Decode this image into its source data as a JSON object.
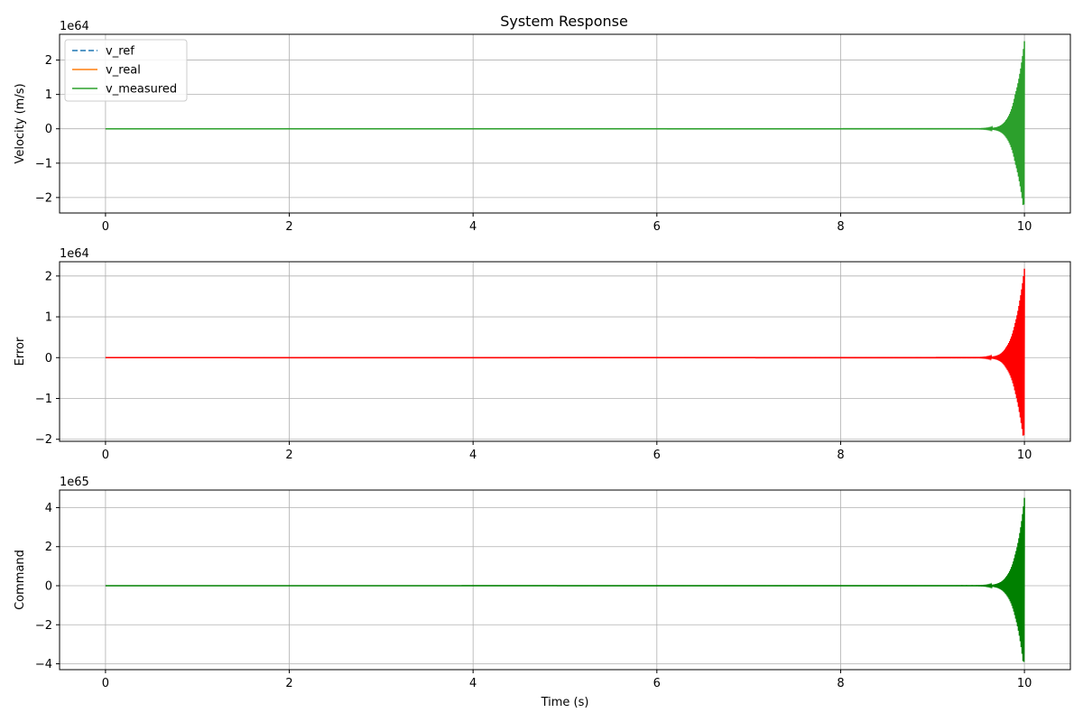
{
  "figure": {
    "title": "System Response"
  },
  "chart_data": [
    {
      "type": "line",
      "title": "System Response",
      "xlabel": "",
      "ylabel": "Velocity (m/s)",
      "y_multiplier": "1e64",
      "xlim": [
        -0.5,
        10.5
      ],
      "ylim": [
        -2.45,
        2.75
      ],
      "xticks": [
        "0",
        "2",
        "4",
        "6",
        "8",
        "10"
      ],
      "xtick_values": [
        0,
        2,
        4,
        6,
        8,
        10
      ],
      "yticks": [
        "−2",
        "−1",
        "0",
        "1",
        "2"
      ],
      "ytick_values": [
        -2,
        -1,
        0,
        1,
        2
      ],
      "grid": true,
      "legend": {
        "placement": "top-left"
      },
      "series": [
        {
          "name": "v_ref",
          "color": "#1f77b4",
          "style": "dashed",
          "behavior": "flat",
          "value": 0
        },
        {
          "name": "v_real",
          "color": "#ff7f0e",
          "style": "solid",
          "behavior": "flat",
          "value": 0
        },
        {
          "name": "v_measured",
          "color": "#2ca02c",
          "style": "solid",
          "behavior": "divergent",
          "envelope": [
            [
              0,
              0
            ],
            [
              9.5,
              0.003
            ],
            [
              9.7,
              0.05
            ],
            [
              9.8,
              0.25
            ],
            [
              9.9,
              1.0
            ],
            [
              9.95,
              1.6
            ],
            [
              10.0,
              2.55
            ]
          ],
          "min_at_end": -2.2
        }
      ]
    },
    {
      "type": "line",
      "xlabel": "",
      "ylabel": "Error",
      "y_multiplier": "1e64",
      "xlim": [
        -0.5,
        10.5
      ],
      "ylim": [
        -2.05,
        2.35
      ],
      "xticks": [
        "0",
        "2",
        "4",
        "6",
        "8",
        "10"
      ],
      "xtick_values": [
        0,
        2,
        4,
        6,
        8,
        10
      ],
      "yticks": [
        "−2",
        "−1",
        "0",
        "1",
        "2"
      ],
      "ytick_values": [
        -2,
        -1,
        0,
        1,
        2
      ],
      "grid": true,
      "series": [
        {
          "color": "#ff0000",
          "style": "solid",
          "behavior": "divergent",
          "envelope": [
            [
              0,
              0
            ],
            [
              9.5,
              0.003
            ],
            [
              9.7,
              0.05
            ],
            [
              9.8,
              0.25
            ],
            [
              9.9,
              0.85
            ],
            [
              9.95,
              1.4
            ],
            [
              10.0,
              2.18
            ]
          ],
          "min_at_end": -1.9
        }
      ]
    },
    {
      "type": "line",
      "xlabel": "Time (s)",
      "ylabel": "Command",
      "y_multiplier": "1e65",
      "xlim": [
        -0.5,
        10.5
      ],
      "ylim": [
        -4.3,
        4.9
      ],
      "xticks": [
        "0",
        "2",
        "4",
        "6",
        "8",
        "10"
      ],
      "xtick_values": [
        0,
        2,
        4,
        6,
        8,
        10
      ],
      "yticks": [
        "−4",
        "−2",
        "0",
        "2",
        "4"
      ],
      "ytick_values": [
        -4,
        -2,
        0,
        2,
        4
      ],
      "grid": true,
      "series": [
        {
          "color": "#008000",
          "style": "solid",
          "behavior": "divergent",
          "envelope": [
            [
              0,
              0
            ],
            [
              9.5,
              0.005
            ],
            [
              9.7,
              0.1
            ],
            [
              9.8,
              0.45
            ],
            [
              9.9,
              1.6
            ],
            [
              9.95,
              2.7
            ],
            [
              10.0,
              4.5
            ]
          ],
          "min_at_end": -3.9
        }
      ]
    }
  ]
}
